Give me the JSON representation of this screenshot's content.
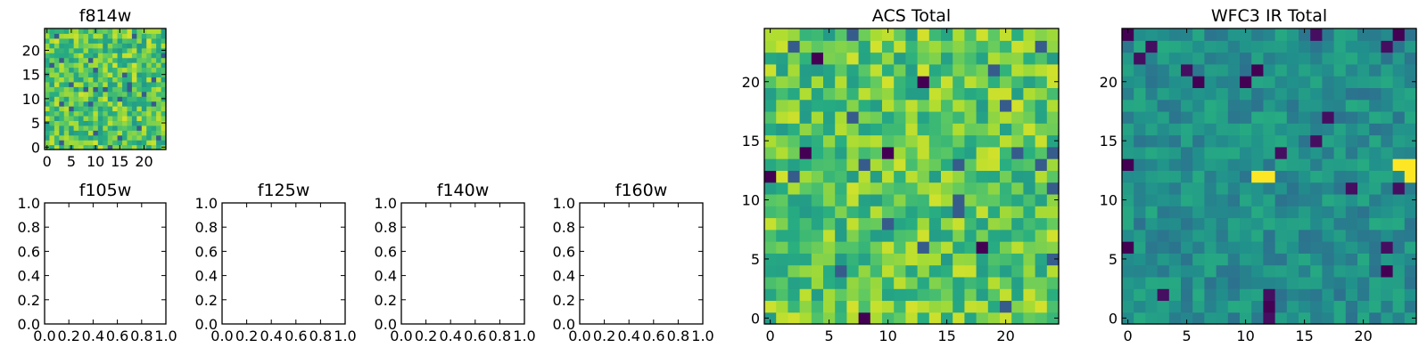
{
  "figure": {
    "colormap": "viridis",
    "colors": {
      "low": "#440154",
      "mid_low": "#3b528b",
      "mid": "#21918c",
      "mid_high": "#5ec962",
      "high": "#fde725",
      "axis": "#000000",
      "background": "#ffffff"
    }
  },
  "chart_data": [
    {
      "id": "f814w",
      "type": "heatmap",
      "title": "f814w",
      "grid_size": 25,
      "xlim": [
        -0.5,
        24.5
      ],
      "ylim": [
        -0.5,
        24.5
      ],
      "xticks": [
        0,
        5,
        10,
        15,
        20
      ],
      "yticks": [
        0,
        5,
        10,
        15,
        20
      ],
      "xtick_labels": [
        "0",
        "5",
        "10",
        "15",
        "20"
      ],
      "ytick_labels": [
        "0",
        "5",
        "10",
        "15",
        "20"
      ],
      "value_range": [
        0,
        1
      ],
      "mean_level": 0.74,
      "spread": 0.2,
      "seed": 814,
      "hot_spots": []
    },
    {
      "id": "f105w",
      "type": "heatmap",
      "title": "f105w",
      "empty": true,
      "xlim": [
        0,
        1
      ],
      "ylim": [
        0,
        1
      ],
      "xtick_labels": [
        "0.0",
        "0.2",
        "0.4",
        "0.6",
        "0.8",
        "1.0"
      ],
      "ytick_labels": [
        "0.0",
        "0.2",
        "0.4",
        "0.6",
        "0.8",
        "1.0"
      ]
    },
    {
      "id": "f125w",
      "type": "heatmap",
      "title": "f125w",
      "empty": true,
      "xlim": [
        0,
        1
      ],
      "ylim": [
        0,
        1
      ],
      "xtick_labels": [
        "0.0",
        "0.2",
        "0.4",
        "0.6",
        "0.8",
        "1.0"
      ],
      "ytick_labels": [
        "0.0",
        "0.2",
        "0.4",
        "0.6",
        "0.8",
        "1.0"
      ]
    },
    {
      "id": "f140w",
      "type": "heatmap",
      "title": "f140w",
      "empty": true,
      "xlim": [
        0,
        1
      ],
      "ylim": [
        0,
        1
      ],
      "xtick_labels": [
        "0.0",
        "0.2",
        "0.4",
        "0.6",
        "0.8",
        "1.0"
      ],
      "ytick_labels": [
        "0.0",
        "0.2",
        "0.4",
        "0.6",
        "0.8",
        "1.0"
      ]
    },
    {
      "id": "f160w",
      "type": "heatmap",
      "title": "f160w",
      "empty": true,
      "xlim": [
        0,
        1
      ],
      "ylim": [
        0,
        1
      ],
      "xtick_labels": [
        "0.0",
        "0.2",
        "0.4",
        "0.6",
        "0.8",
        "1.0"
      ],
      "ytick_labels": [
        "0.0",
        "0.2",
        "0.4",
        "0.6",
        "0.8",
        "1.0"
      ]
    },
    {
      "id": "acs-total",
      "type": "heatmap",
      "title": "ACS Total",
      "grid_size": 25,
      "xlim": [
        -0.5,
        24.5
      ],
      "ylim": [
        -0.5,
        24.5
      ],
      "xticks": [
        0,
        5,
        10,
        15,
        20
      ],
      "yticks": [
        0,
        5,
        10,
        15,
        20
      ],
      "xtick_labels": [
        "0",
        "5",
        "10",
        "15",
        "20"
      ],
      "ytick_labels": [
        "0",
        "5",
        "10",
        "15",
        "20"
      ],
      "value_range": [
        0,
        1
      ],
      "mean_level": 0.74,
      "spread": 0.2,
      "seed": 2001,
      "hot_spots": [
        [
          4,
          22
        ],
        [
          0,
          12
        ],
        [
          3,
          14
        ],
        [
          8,
          0
        ],
        [
          18,
          6
        ],
        [
          13,
          20
        ],
        [
          10,
          14
        ]
      ]
    },
    {
      "id": "wfc3-ir-total",
      "type": "heatmap",
      "title": "WFC3 IR Total",
      "grid_size": 25,
      "xlim": [
        -0.5,
        24.5
      ],
      "ylim": [
        -0.5,
        24.5
      ],
      "xticks": [
        0,
        5,
        10,
        15,
        20
      ],
      "yticks": [
        0,
        5,
        10,
        15,
        20
      ],
      "xtick_labels": [
        "0",
        "5",
        "10",
        "15",
        "20"
      ],
      "ytick_labels": [
        "0",
        "5",
        "10",
        "15",
        "20"
      ],
      "value_range": [
        0,
        1
      ],
      "mean_level": 0.5,
      "spread": 0.12,
      "seed": 3003,
      "hot_spots": [
        [
          0,
          24
        ],
        [
          11,
          21
        ],
        [
          10,
          20
        ],
        [
          6,
          20
        ],
        [
          0,
          13
        ],
        [
          0,
          6
        ],
        [
          12,
          1
        ],
        [
          22,
          4
        ],
        [
          23,
          24
        ]
      ],
      "bright_spots": [
        [
          11,
          12
        ],
        [
          12,
          12
        ],
        [
          23,
          13
        ],
        [
          24,
          13
        ],
        [
          24,
          12
        ]
      ]
    }
  ]
}
